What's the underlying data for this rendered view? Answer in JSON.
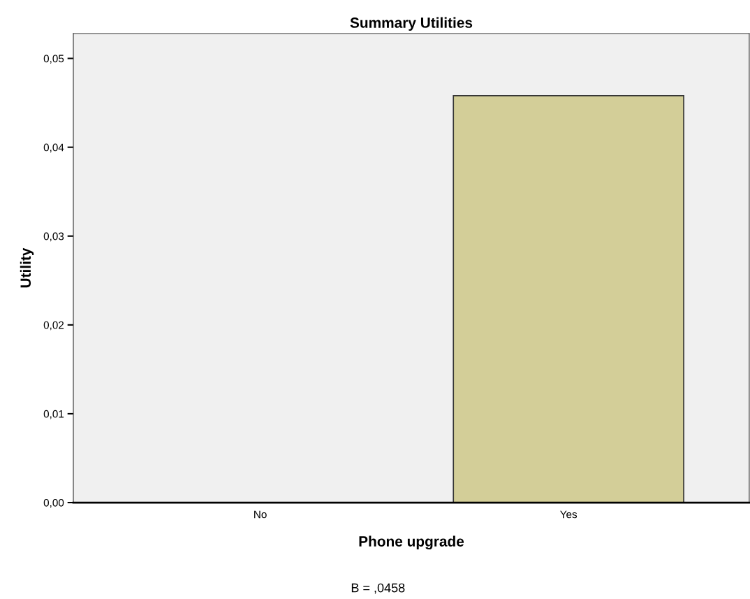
{
  "chart_data": {
    "type": "bar",
    "title": "Summary Utilities",
    "xlabel": "Phone upgrade",
    "ylabel": "Utility",
    "categories": [
      "No",
      "Yes"
    ],
    "values": [
      0,
      0.0458
    ],
    "color": "#d3ce98",
    "ylim": [
      0,
      0.0528
    ],
    "yticks": [
      {
        "value": 0,
        "label": "0,00"
      },
      {
        "value": 0.01,
        "label": "0,01"
      },
      {
        "value": 0.02,
        "label": "0,02"
      },
      {
        "value": 0.03,
        "label": "0,03"
      },
      {
        "value": 0.04,
        "label": "0,04"
      },
      {
        "value": 0.05,
        "label": "0,05"
      }
    ],
    "annotations": [
      "B = ,0458"
    ],
    "grid": false,
    "legend": false
  }
}
